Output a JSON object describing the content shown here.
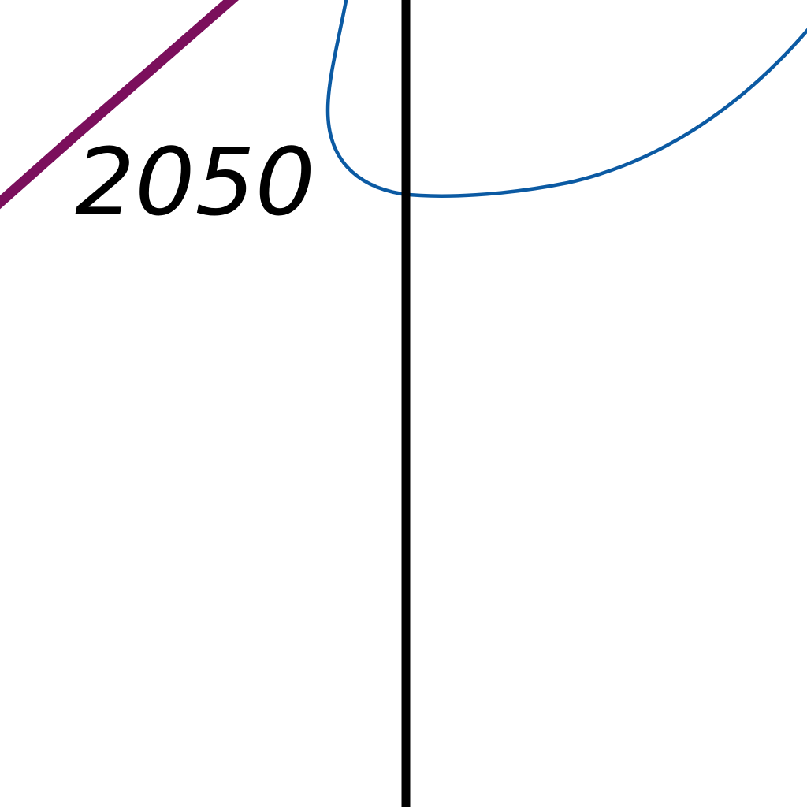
{
  "map": {
    "labels": {
      "contour_label": "2050"
    },
    "colors": {
      "background": "#ffffff",
      "purple_line": "#7b0f5c",
      "blue_curve": "#0b5aa3",
      "black_line": "#000000",
      "label": "#000000"
    }
  }
}
